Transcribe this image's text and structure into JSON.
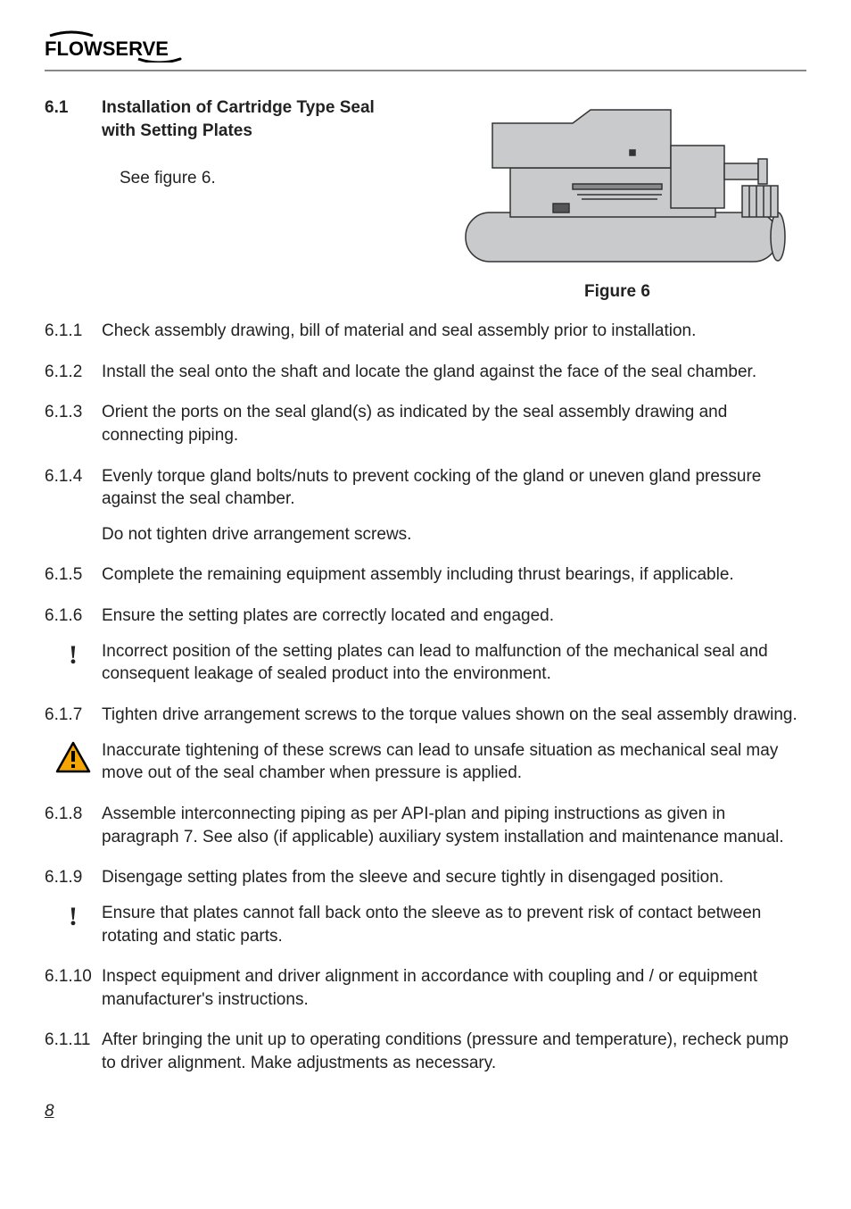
{
  "logo": {
    "text": "FLOWSERVE"
  },
  "section": {
    "number": "6.1",
    "title": "Installation of Cartridge Type Seal with Setting Plates",
    "see_figure": "See figure 6."
  },
  "figure": {
    "caption": "Figure 6"
  },
  "items": [
    {
      "num": "6.1.1",
      "paras": [
        "Check assembly drawing, bill of material and seal assembly prior to installation."
      ]
    },
    {
      "num": "6.1.2",
      "paras": [
        "Install the seal onto the shaft and locate the gland against the face of the seal chamber."
      ]
    },
    {
      "num": "6.1.3",
      "paras": [
        "Orient the ports on the seal gland(s) as indicated by the seal assembly drawing and connecting piping."
      ]
    },
    {
      "num": "6.1.4",
      "paras": [
        "Evenly torque gland bolts/nuts to prevent cocking of the gland or uneven gland pressure against the seal chamber.",
        "Do not tighten drive arrangement screws."
      ]
    },
    {
      "num": "6.1.5",
      "paras": [
        "Complete the remaining equipment assembly including thrust bearings, if applicable."
      ]
    },
    {
      "num": "6.1.6",
      "paras": [
        "Ensure the setting plates are correctly located and engaged."
      ]
    },
    {
      "type": "note",
      "icon": "bang",
      "paras": [
        "Incorrect position of the setting plates can lead to malfunction of the mechanical seal and consequent leakage of sealed product into the environment."
      ]
    },
    {
      "num": "6.1.7",
      "paras": [
        "Tighten drive arrangement screws to the torque values shown on the seal assembly drawing."
      ]
    },
    {
      "type": "note",
      "icon": "warning",
      "paras": [
        "Inaccurate tightening of these screws can lead to unsafe situation as mechanical seal may move out of the seal chamber when pressure is applied."
      ]
    },
    {
      "num": "6.1.8",
      "paras": [
        "Assemble interconnecting piping as per API-plan and piping instructions as given in paragraph 7. See also (if applicable) auxiliary system installation and maintenance manual."
      ]
    },
    {
      "num": "6.1.9",
      "paras": [
        "Disengage setting plates from the sleeve and secure tightly in disengaged position."
      ]
    },
    {
      "type": "note",
      "icon": "bang",
      "paras": [
        "Ensure that plates cannot fall back onto the sleeve as to prevent risk of contact between rotating and static parts."
      ]
    },
    {
      "num": "6.1.10",
      "paras": [
        "Inspect equipment and driver alignment in accordance with coupling and / or equipment manufacturer's instructions."
      ]
    },
    {
      "num": "6.1.11",
      "paras": [
        "After bringing the unit up to operating conditions (pressure and temperature), recheck pump to driver alignment. Make adjustments as necessary."
      ]
    }
  ],
  "page_number": "8",
  "colors": {
    "figure_fill": "#c9cacb",
    "figure_stroke": "#333333",
    "warn_fill": "#f5a500",
    "warn_stroke": "#000000",
    "hr": "#888888"
  }
}
